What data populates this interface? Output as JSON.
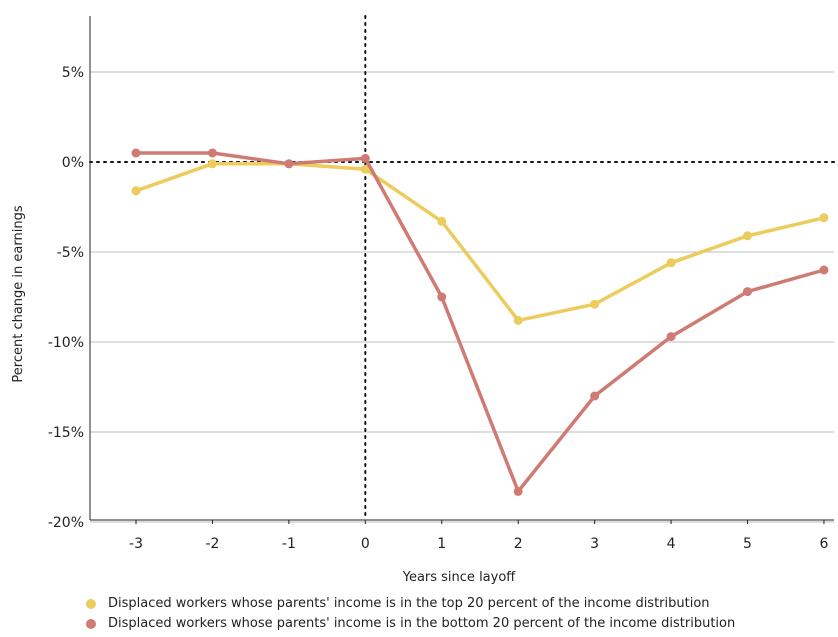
{
  "chart_data": {
    "type": "line",
    "title": "",
    "xlabel": "Years since layoff",
    "ylabel": "Percent change in earnings",
    "x": [
      -3,
      -2,
      -1,
      0,
      1,
      2,
      3,
      4,
      5,
      6
    ],
    "x_tick_labels": [
      "-3",
      "-2",
      "-1",
      "0",
      "1",
      "2",
      "3",
      "4",
      "5",
      "6"
    ],
    "y_ticks": [
      5,
      0,
      -5,
      -10,
      -15,
      -20
    ],
    "y_tick_labels": [
      "5%",
      "0%",
      "-5%",
      "-10%",
      "-15%",
      "-20%"
    ],
    "ylim": [
      -20,
      8
    ],
    "xlim": [
      -3.5,
      6
    ],
    "grid": "horizontal",
    "reference_lines": {
      "y": 0,
      "x": 0,
      "style": "dotted"
    },
    "legend_position": "bottom",
    "series": [
      {
        "name": "Displaced workers whose parents' income is in the top 20 percent of the income distribution",
        "color": "#EDCC5E",
        "values": [
          -1.6,
          -0.1,
          -0.1,
          -0.4,
          -3.3,
          -8.8,
          -7.9,
          -5.6,
          -4.1,
          -3.1
        ]
      },
      {
        "name": "Displaced workers whose parents' income is in the bottom 20 percent of the income distribution",
        "color": "#CF7B73",
        "values": [
          0.5,
          0.5,
          -0.1,
          0.2,
          -7.5,
          -18.3,
          -13.0,
          -9.7,
          -7.2,
          -6.0
        ]
      }
    ]
  }
}
